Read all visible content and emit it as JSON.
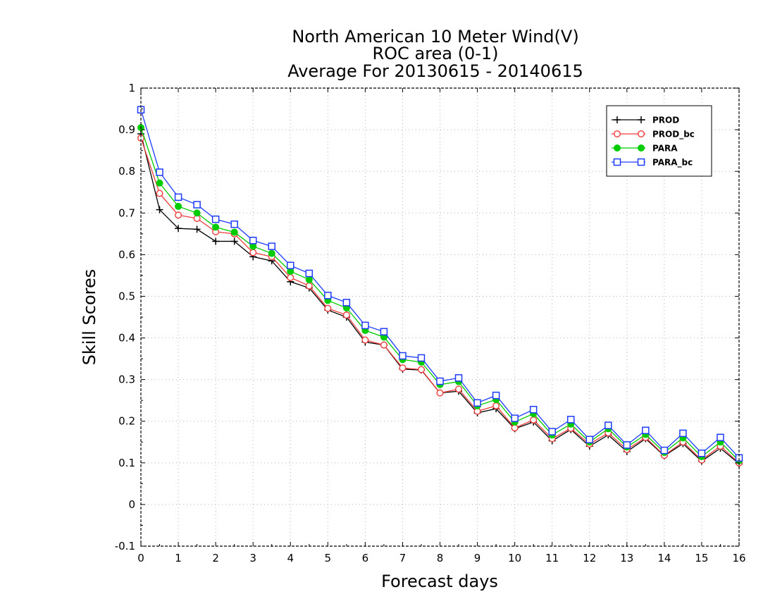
{
  "chart_data": {
    "type": "line",
    "title": [
      "North American 10 Meter Wind(V)",
      "ROC area (0-1)",
      "Average For 20130615 - 20140615"
    ],
    "xlabel": "Forecast days",
    "ylabel": "Skill Scores",
    "xlim": [
      0,
      16
    ],
    "ylim": [
      -0.1,
      1
    ],
    "xticks": [
      0,
      1,
      2,
      3,
      4,
      5,
      6,
      7,
      8,
      9,
      10,
      11,
      12,
      13,
      14,
      15,
      16
    ],
    "yticks": [
      -0.1,
      0,
      0.1,
      0.2,
      0.3,
      0.4,
      0.5,
      0.6,
      0.7,
      0.8,
      0.9,
      1
    ],
    "ytick_labels": [
      "-0.1",
      "0",
      "0.1",
      "0.2",
      "0.3",
      "0.4",
      "0.5",
      "0.6",
      "0.7",
      "0.8",
      "0.9",
      "1"
    ],
    "grid": true,
    "legend_position": "top-right",
    "x": [
      0,
      0.5,
      1,
      1.5,
      2,
      2.5,
      3,
      3.5,
      4,
      4.5,
      5,
      5.5,
      6,
      6.5,
      7,
      7.5,
      8,
      8.5,
      9,
      9.5,
      10,
      10.5,
      11,
      11.5,
      12,
      12.5,
      13,
      13.5,
      14,
      14.5,
      15,
      15.5,
      16
    ],
    "series": [
      {
        "name": "PROD",
        "color": "#000000",
        "marker": "plus",
        "values": [
          0.89,
          0.708,
          0.663,
          0.661,
          0.632,
          0.632,
          0.595,
          0.585,
          0.535,
          0.52,
          0.467,
          0.45,
          0.39,
          0.383,
          0.325,
          0.323,
          0.268,
          0.272,
          0.22,
          0.23,
          0.182,
          0.198,
          0.153,
          0.18,
          0.14,
          0.167,
          0.127,
          0.158,
          0.117,
          0.146,
          0.104,
          0.135,
          0.098
        ]
      },
      {
        "name": "PROD_bc",
        "color": "#ee3b3b",
        "marker": "circle-open",
        "values": [
          0.88,
          0.747,
          0.695,
          0.687,
          0.655,
          0.65,
          0.605,
          0.595,
          0.545,
          0.525,
          0.471,
          0.455,
          0.395,
          0.383,
          0.328,
          0.324,
          0.268,
          0.277,
          0.224,
          0.237,
          0.184,
          0.203,
          0.158,
          0.183,
          0.145,
          0.172,
          0.132,
          0.161,
          0.118,
          0.15,
          0.107,
          0.14,
          0.1
        ]
      },
      {
        "name": "PARA",
        "color": "#00cc00",
        "marker": "circle-filled",
        "values": [
          0.905,
          0.772,
          0.716,
          0.7,
          0.666,
          0.654,
          0.62,
          0.603,
          0.56,
          0.54,
          0.49,
          0.472,
          0.418,
          0.402,
          0.348,
          0.342,
          0.288,
          0.295,
          0.237,
          0.252,
          0.198,
          0.218,
          0.167,
          0.193,
          0.15,
          0.182,
          0.138,
          0.168,
          0.125,
          0.16,
          0.115,
          0.15,
          0.105
        ]
      },
      {
        "name": "PARA_bc",
        "color": "#1e3cff",
        "marker": "square-open",
        "values": [
          0.948,
          0.798,
          0.738,
          0.72,
          0.685,
          0.673,
          0.634,
          0.62,
          0.574,
          0.555,
          0.502,
          0.485,
          0.43,
          0.415,
          0.357,
          0.352,
          0.296,
          0.304,
          0.244,
          0.262,
          0.207,
          0.228,
          0.175,
          0.204,
          0.156,
          0.19,
          0.143,
          0.178,
          0.13,
          0.171,
          0.123,
          0.161,
          0.112
        ]
      }
    ]
  }
}
